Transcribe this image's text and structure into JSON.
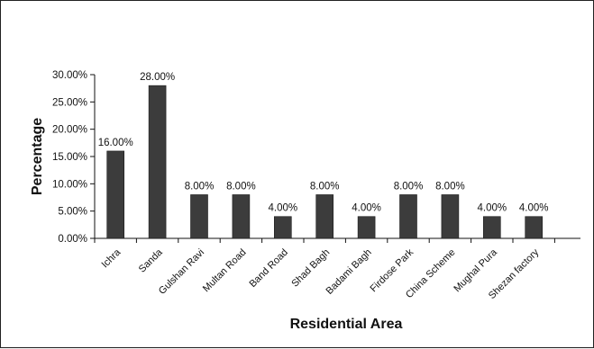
{
  "chart_data": {
    "type": "bar",
    "title": "",
    "xlabel": "Residential Area",
    "ylabel": "Percentage",
    "ylim": [
      0,
      30
    ],
    "yticks": [
      "0.00%",
      "5.00%",
      "10.00%",
      "15.00%",
      "20.00%",
      "25.00%",
      "30.00%"
    ],
    "categories": [
      "Ichra",
      "Sanda",
      "Gulshan Ravi",
      "Multan Road",
      "Band Road",
      "Shad Bagh",
      "Badami Bagh",
      "Firdose Park",
      "China Scheme",
      "Mughal Pura",
      "Shezan factory"
    ],
    "values": [
      16,
      28,
      8,
      8,
      4,
      8,
      4,
      8,
      8,
      4,
      4
    ],
    "data_labels": [
      "16.00%",
      "28.00%",
      "8.00%",
      "8.00%",
      "4.00%",
      "8.00%",
      "4.00%",
      "8.00%",
      "8.00%",
      "4.00%",
      "4.00%"
    ],
    "grid": false,
    "legend": "none",
    "colors": {
      "bar": "#3c3c3c",
      "axis": "#111111",
      "background": "#ffffff"
    }
  }
}
